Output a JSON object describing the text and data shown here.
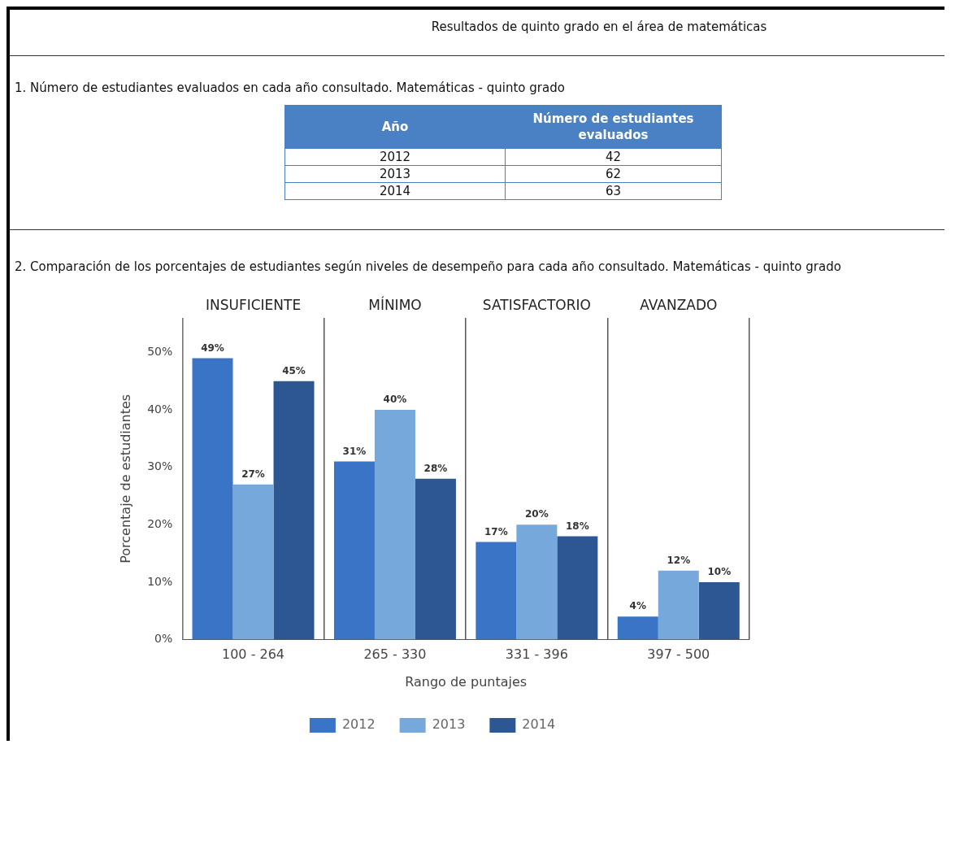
{
  "chart_data": [
    {
      "type": "other",
      "title": "Resultados de quinto grado en el área de matemáticas",
      "subtitle": "1. Número de estudiantes evaluados en cada año consultado. Matemáticas - quinto grado",
      "xlabel": "Año",
      "ylabel": "Número de estudiantes evaluados",
      "categories": [
        "2012",
        "2013",
        "2014"
      ],
      "values": [
        42,
        62,
        63
      ],
      "data_labels": true
    },
    {
      "type": "bar",
      "title": "2. Comparación de los porcentajes de estudiantes según niveles de desempeño para cada año consultado. Matemáticas - quinto grado",
      "categories": [
        "100 - 264",
        "265 - 330",
        "331 - 396",
        "397 - 500"
      ],
      "xlabel": "Rango de puntajes",
      "ylabel": "Porcentaje de estudiantes",
      "series": [
        {
          "name": "2012",
          "color": "#3a74c6",
          "values": [
            49,
            31,
            17,
            4
          ],
          "value_labels": [
            "49%",
            "31%",
            "17%",
            "4%"
          ]
        },
        {
          "name": "2013",
          "color": "#76a8dc",
          "values": [
            27,
            40,
            20,
            12
          ],
          "value_labels": [
            "27%",
            "40%",
            "20%",
            "12%"
          ]
        },
        {
          "name": "2014",
          "color": "#2c5793",
          "values": [
            45,
            28,
            18,
            10
          ],
          "value_labels": [
            "45%",
            "28%",
            "18%",
            "10%"
          ]
        }
      ],
      "ylim": [
        0,
        56
      ],
      "yticks": [
        {
          "value": 0,
          "label": "0%"
        },
        {
          "value": 10,
          "label": "10%"
        },
        {
          "value": 20,
          "label": "20%"
        },
        {
          "value": 30,
          "label": "30%"
        },
        {
          "value": 40,
          "label": "40%"
        },
        {
          "value": 50,
          "label": "50%"
        }
      ],
      "annotations": [
        "INSUFICIENTE",
        "MÍNIMO",
        "SATISFACTORIO",
        "AVANZADO"
      ],
      "grid": "x",
      "legend": "bottom"
    }
  ]
}
